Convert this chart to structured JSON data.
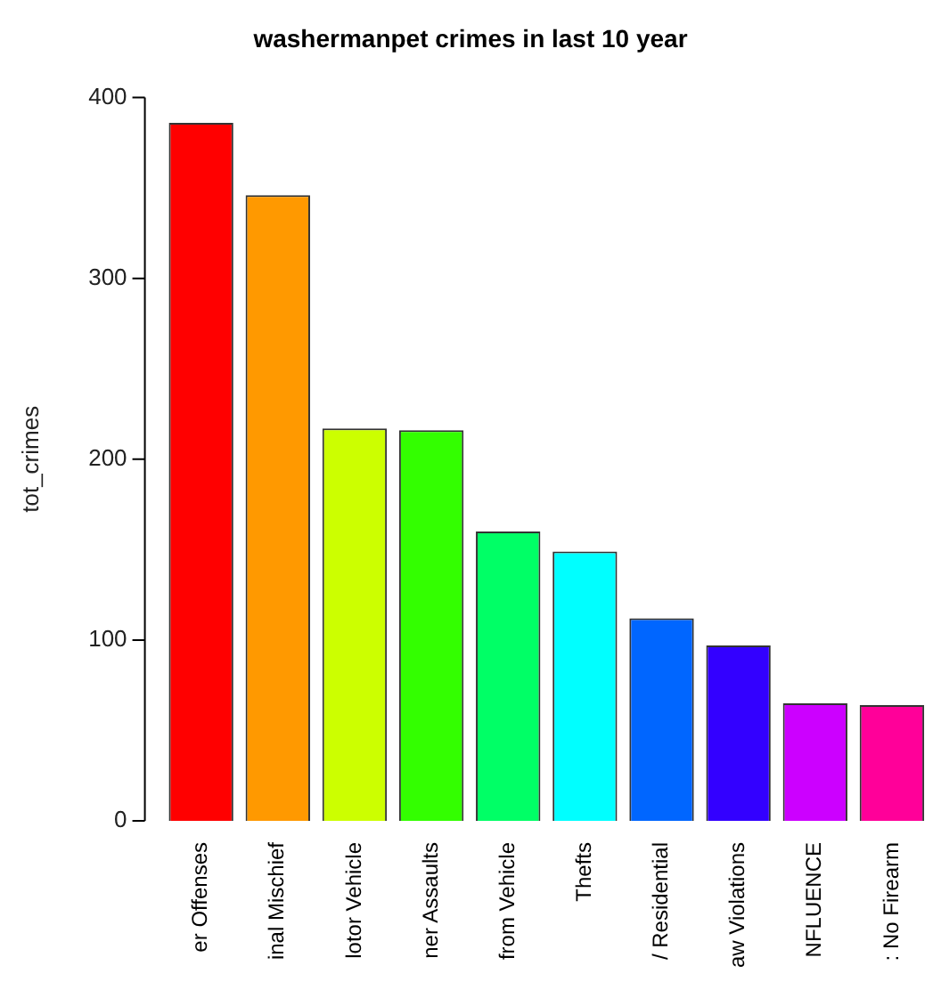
{
  "chart_data": {
    "type": "bar",
    "title": "washermanpet crimes in last 10 year",
    "ylabel": "tot_crimes",
    "categories": [
      "er Offenses",
      "inal Mischief",
      "lotor Vehicle",
      "ner Assaults",
      "from Vehicle",
      "Thefts",
      "/ Residential",
      "aw Violations",
      "NFLUENCE",
      ": No Firearm"
    ],
    "values": [
      386,
      346,
      217,
      216,
      160,
      149,
      112,
      97,
      65,
      64
    ],
    "colors": [
      "#ff0000",
      "#ff9900",
      "#ccff00",
      "#33ff00",
      "#00ff66",
      "#00ffff",
      "#0066ff",
      "#3300ff",
      "#cc00ff",
      "#ff0099"
    ],
    "ylim": [
      0,
      400
    ],
    "yticks": [
      0,
      100,
      200,
      300,
      400
    ],
    "grid": false,
    "legend": false
  }
}
